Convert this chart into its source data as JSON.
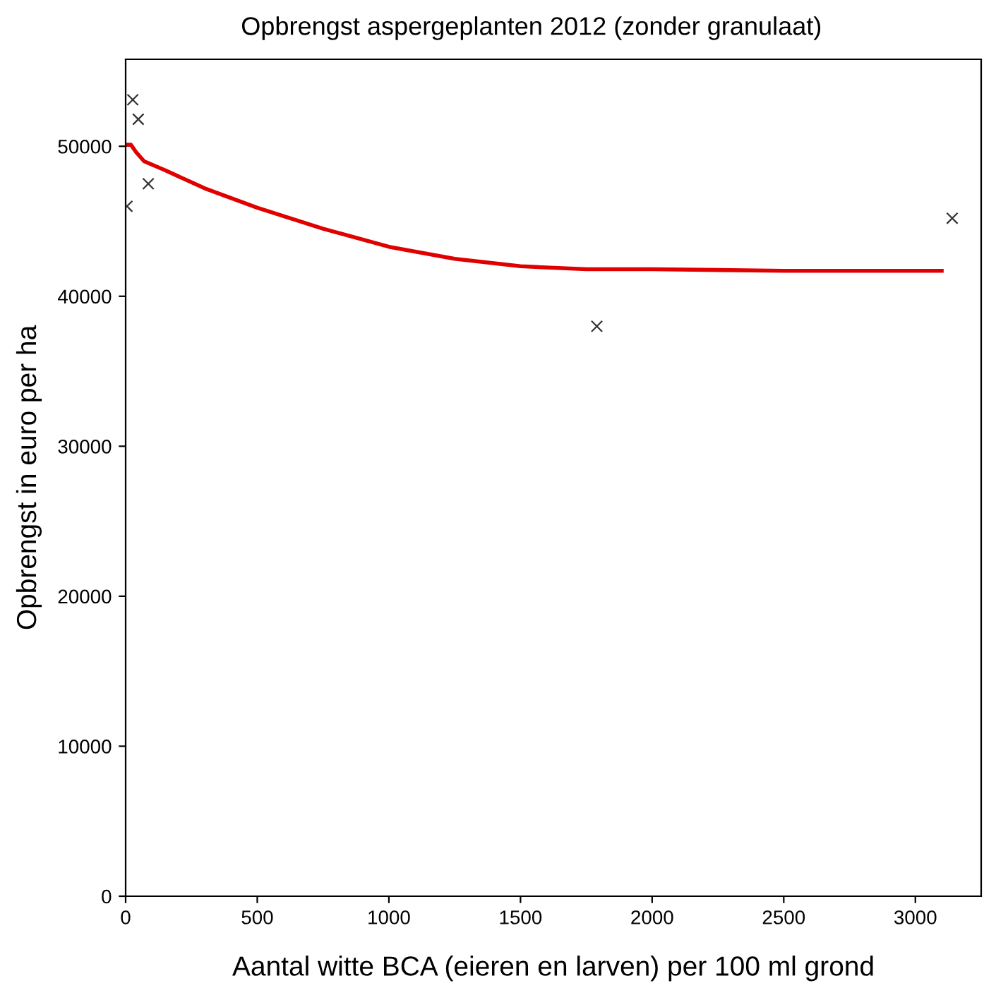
{
  "chart_data": {
    "type": "scatter",
    "title": "Opbrengst aspergeplanten 2012 (zonder granulaat)",
    "xlabel": "Aantal witte BCA (eieren en larven) per 100 ml grond",
    "ylabel": "Opbrengst in euro per ha",
    "series": [
      {
        "color": "#333333",
        "marker": "cross",
        "x": [
          5,
          27,
          48,
          86,
          1790,
          3140
        ],
        "values": [
          46000,
          53100,
          51800,
          47500,
          38000,
          45200
        ]
      },
      {
        "type": "line",
        "color": "#e00000",
        "marker": "none",
        "line_style": "solid",
        "x": [
          0,
          20,
          40,
          70,
          150,
          300,
          500,
          750,
          1000,
          1250,
          1500,
          1750,
          2000,
          2500,
          3100
        ],
        "values": [
          50100,
          50100,
          49600,
          49000,
          48400,
          47200,
          45900,
          44500,
          43300,
          42500,
          42000,
          41800,
          41800,
          41700,
          41700
        ]
      }
    ],
    "xlim": [
      0,
      3250
    ],
    "ylim": [
      0,
      55800
    ],
    "xticks": [
      0,
      500,
      1000,
      1500,
      2000,
      2500,
      3000
    ],
    "yticks": [
      0,
      10000,
      20000,
      30000,
      40000,
      50000
    ],
    "grid": false,
    "legend": false
  }
}
